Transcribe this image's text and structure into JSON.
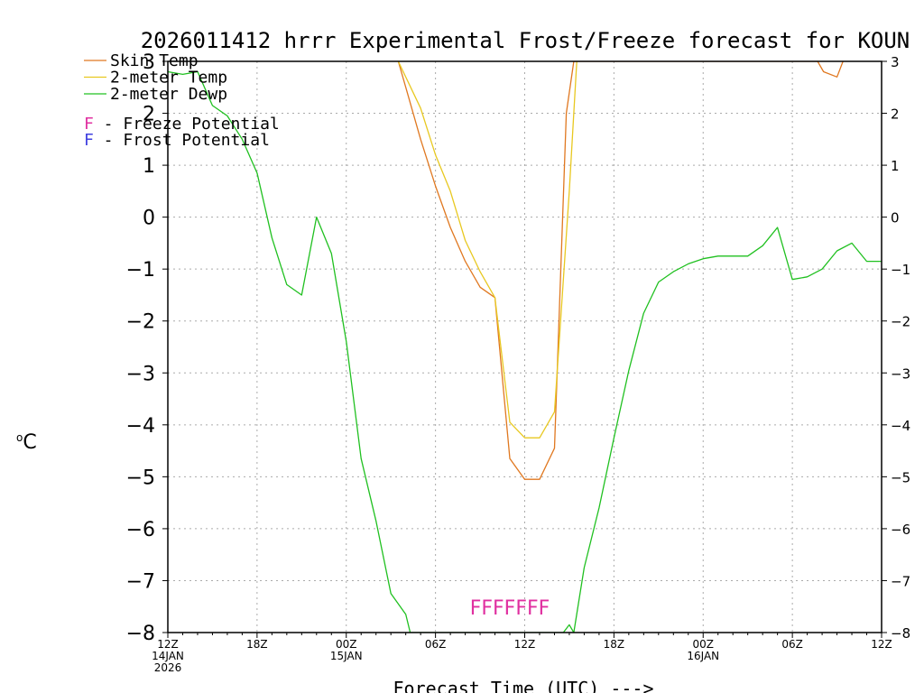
{
  "chart_data": {
    "type": "line",
    "title": "2026011412 hrrr Experimental Frost/Freeze forecast for KOUN",
    "xlabel": "Forecast Time (UTC) --->",
    "ylabel": "°C",
    "ylabel_degree": "o",
    "ylabel_unit": "C",
    "ylim": [
      -8,
      3
    ],
    "xlim": [
      0,
      48
    ],
    "grid": true,
    "y_ticks": [
      3,
      2,
      1,
      0,
      -1,
      -2,
      -3,
      -4,
      -5,
      -6,
      -7,
      -8
    ],
    "y_tick_labels_left": [
      "3",
      "2",
      "1",
      "0",
      "−1",
      "−2",
      "−3",
      "−4",
      "−5",
      "−6",
      "−7",
      "−8"
    ],
    "y_tick_labels_right": [
      "3",
      "2",
      "1",
      "0",
      "−1",
      "−2",
      "−3",
      "−4",
      "−5",
      "−6",
      "−7",
      "−8"
    ],
    "x_ticks": [
      {
        "hour": 0,
        "label": "12Z",
        "sub1": "14JAN",
        "sub2": "2026"
      },
      {
        "hour": 6,
        "label": "18Z",
        "sub1": "",
        "sub2": ""
      },
      {
        "hour": 12,
        "label": "00Z",
        "sub1": "15JAN",
        "sub2": ""
      },
      {
        "hour": 18,
        "label": "06Z",
        "sub1": "",
        "sub2": ""
      },
      {
        "hour": 24,
        "label": "12Z",
        "sub1": "",
        "sub2": ""
      },
      {
        "hour": 30,
        "label": "18Z",
        "sub1": "",
        "sub2": ""
      },
      {
        "hour": 36,
        "label": "00Z",
        "sub1": "16JAN",
        "sub2": ""
      },
      {
        "hour": 42,
        "label": "06Z",
        "sub1": "",
        "sub2": ""
      },
      {
        "hour": 48,
        "label": "12Z",
        "sub1": "",
        "sub2": ""
      }
    ],
    "series": [
      {
        "name": "Skin Temp",
        "color": "#e07820",
        "x": [
          15.5,
          16,
          17,
          18,
          19,
          20,
          21,
          22,
          23,
          24,
          25,
          26,
          26.8,
          27.3,
          43.7,
          44.1,
          45,
          45.4
        ],
        "y": [
          3,
          2.5,
          1.5,
          0.6,
          -0.2,
          -0.85,
          -1.35,
          -1.55,
          -4.65,
          -5.05,
          -5.05,
          -4.45,
          2.0,
          3,
          3,
          2.8,
          2.7,
          3
        ]
      },
      {
        "name": "2-meter Temp",
        "color": "#e8c820",
        "x": [
          15.5,
          17,
          18,
          19,
          20,
          21,
          22,
          23,
          24,
          25,
          26,
          27.0,
          27.5
        ],
        "y": [
          3,
          2.1,
          1.2,
          0.5,
          -0.45,
          -1.05,
          -1.55,
          -3.95,
          -4.25,
          -4.25,
          -3.75,
          0.5,
          3
        ]
      },
      {
        "name": "2-meter Dewp",
        "color": "#20c020",
        "x": [
          0,
          1,
          2,
          3,
          4,
          5,
          6,
          7,
          8,
          9,
          10,
          11,
          12,
          13,
          14,
          15,
          16,
          16.3,
          26.6,
          27,
          27.3,
          28,
          29,
          30,
          31,
          32,
          33,
          34,
          35,
          36,
          37,
          38,
          39,
          40,
          41,
          42,
          43,
          44,
          45,
          46,
          47,
          48
        ],
        "y": [
          2.8,
          2.75,
          2.8,
          2.15,
          1.95,
          1.5,
          0.85,
          -0.4,
          -1.3,
          -1.5,
          0.0,
          -0.7,
          -2.4,
          -4.65,
          -5.85,
          -7.25,
          -7.65,
          -8,
          -8,
          -7.85,
          -8,
          -6.75,
          -5.6,
          -4.25,
          -2.95,
          -1.85,
          -1.25,
          -1.05,
          -0.9,
          -0.8,
          -0.75,
          -0.75,
          -0.75,
          -0.55,
          -0.2,
          -1.2,
          -1.15,
          -1.0,
          -0.65,
          -0.5,
          -0.85,
          -0.85
        ]
      }
    ],
    "freeze_markers": {
      "text": "FFFFFFF",
      "color": "#e030a0",
      "start_hour": 19.5,
      "end_hour": 26.5
    }
  },
  "legend": {
    "items": [
      {
        "label": "Skin Temp",
        "color": "#e07820"
      },
      {
        "label": "2-meter Temp",
        "color": "#e8c820"
      },
      {
        "label": "2-meter Dewp",
        "color": "#20c020"
      }
    ],
    "freeze": {
      "letter": "F",
      "text": " - Freeze Potential",
      "color": "#e030a0"
    },
    "frost": {
      "letter": "F",
      "text": " - Frost Potential",
      "color": "#4040e0"
    }
  }
}
